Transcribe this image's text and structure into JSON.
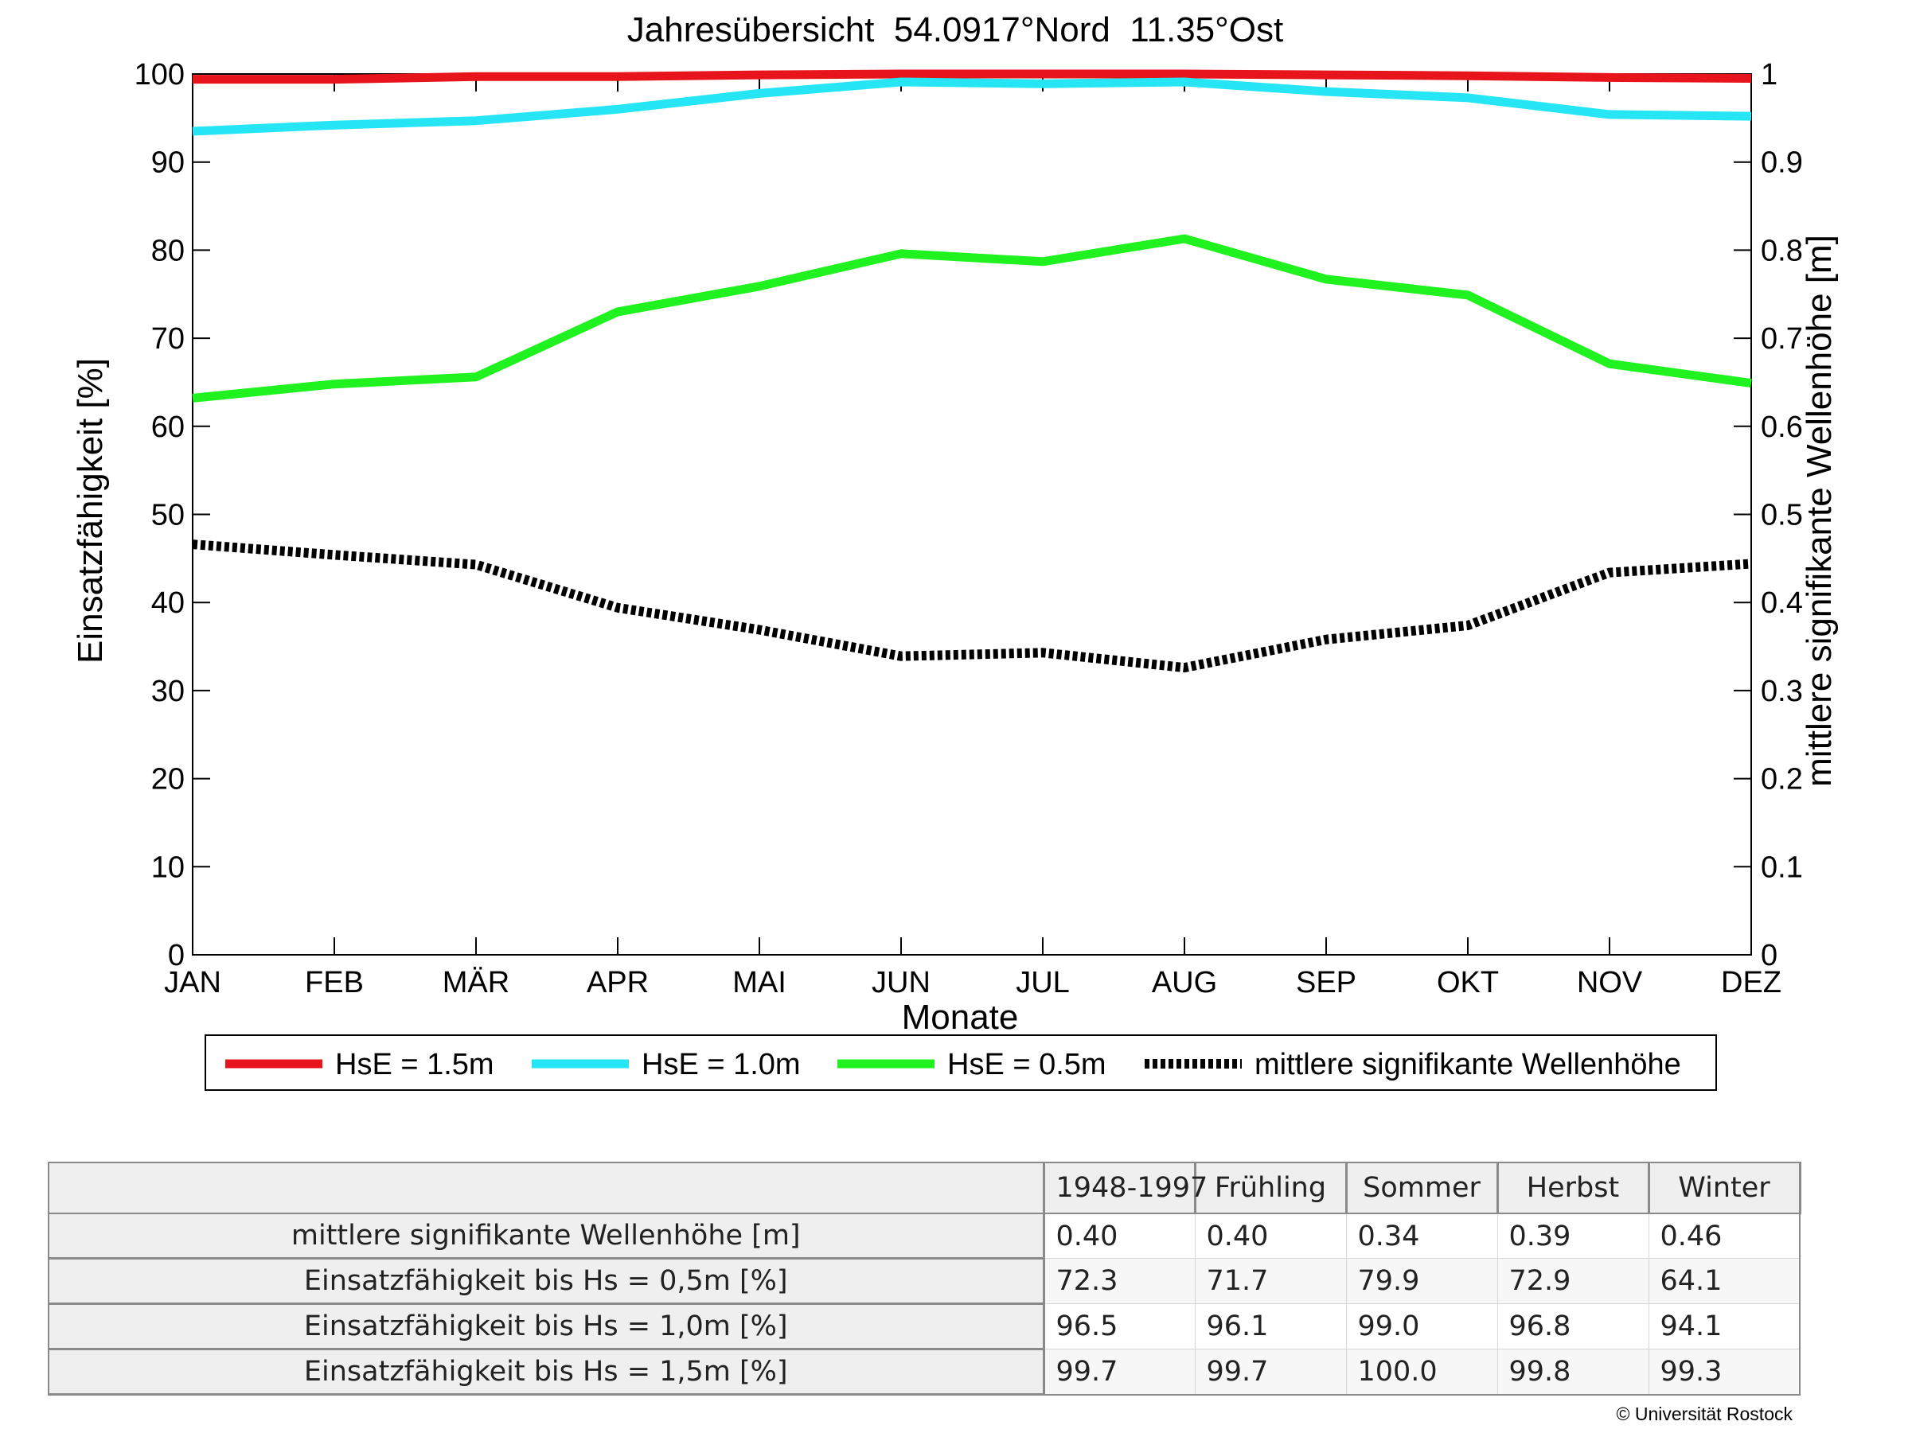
{
  "chart_data": {
    "type": "line",
    "title": "Jahresübersicht  54.0917°Nord  11.35°Ost",
    "xlabel": "Monate",
    "ylabel": "Einsatzfähigkeit [%]",
    "y2label": "mittlere signifikante Wellenhöhe [m]",
    "categories": [
      "JAN",
      "FEB",
      "MÄR",
      "APR",
      "MAI",
      "JUN",
      "JUL",
      "AUG",
      "SEP",
      "OKT",
      "NOV",
      "DEZ"
    ],
    "ylim": [
      0,
      100
    ],
    "y2lim": [
      0,
      1
    ],
    "y_ticks": [
      "0",
      "10",
      "20",
      "30",
      "40",
      "50",
      "60",
      "70",
      "80",
      "90",
      "100"
    ],
    "y2_ticks": [
      "0",
      "0.1",
      "0.2",
      "0.3",
      "0.4",
      "0.5",
      "0.6",
      "0.7",
      "0.8",
      "0.9",
      "1"
    ],
    "grid": false,
    "legend_position": "bottom",
    "series": [
      {
        "name": "HsE = 1.5m",
        "axis": "left",
        "color": "#e8141b",
        "style": "solid",
        "values": [
          99.4,
          99.4,
          99.7,
          99.7,
          99.9,
          100.0,
          100.0,
          100.0,
          99.9,
          99.8,
          99.6,
          99.5
        ]
      },
      {
        "name": "HsE = 1.0m",
        "axis": "left",
        "color": "#26e6f5",
        "style": "solid",
        "values": [
          93.5,
          94.2,
          94.7,
          96.0,
          97.8,
          99.1,
          98.9,
          99.1,
          98.0,
          97.3,
          95.4,
          95.2
        ]
      },
      {
        "name": "HsE = 0.5m",
        "axis": "left",
        "color": "#1ff21f",
        "style": "solid",
        "values": [
          63.2,
          64.8,
          65.6,
          73.0,
          75.9,
          79.6,
          78.7,
          81.3,
          76.7,
          74.9,
          67.1,
          64.9
        ]
      },
      {
        "name": "mittlere signifikante Wellenhöhe",
        "axis": "right",
        "color": "#000000",
        "style": "dotted",
        "values": [
          0.466,
          0.454,
          0.443,
          0.394,
          0.369,
          0.339,
          0.343,
          0.326,
          0.358,
          0.374,
          0.434,
          0.444
        ]
      }
    ]
  },
  "table": {
    "header": [
      "",
      "1948-1997",
      "Frühling",
      "Sommer",
      "Herbst",
      "Winter"
    ],
    "rows": [
      {
        "label": "mittlere signifikante Wellenhöhe [m]",
        "values": [
          "0.40",
          "0.40",
          "0.34",
          "0.39",
          "0.46"
        ]
      },
      {
        "label": "Einsatzfähigkeit bis Hs = 0,5m [%]",
        "values": [
          "72.3",
          "71.7",
          "79.9",
          "72.9",
          "64.1"
        ]
      },
      {
        "label": "Einsatzfähigkeit bis Hs = 1,0m [%]",
        "values": [
          "96.5",
          "96.1",
          "99.0",
          "96.8",
          "94.1"
        ]
      },
      {
        "label": "Einsatzfähigkeit bis Hs = 1,5m [%]",
        "values": [
          "99.7",
          "99.7",
          "100.0",
          "99.8",
          "99.3"
        ]
      }
    ]
  },
  "copyright": "© Universität Rostock"
}
